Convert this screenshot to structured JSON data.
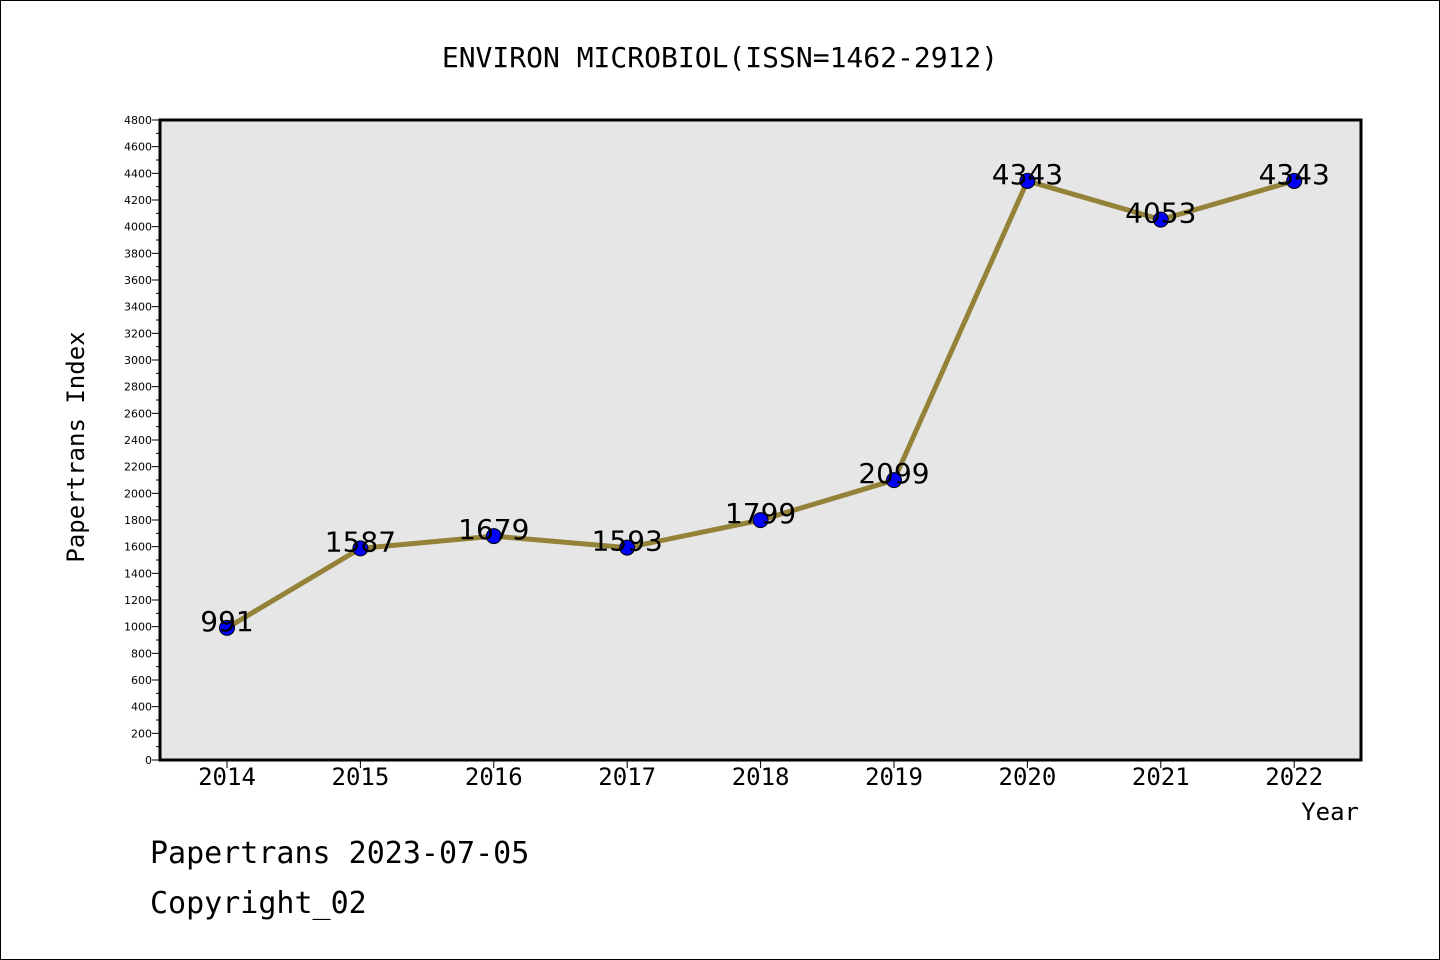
{
  "chart_data": {
    "type": "line",
    "title": "ENVIRON MICROBIOL(ISSN=1462-2912)",
    "xlabel": "Year",
    "ylabel": "Papertrans Index",
    "categories": [
      "2014",
      "2015",
      "2016",
      "2017",
      "2018",
      "2019",
      "2020",
      "2021",
      "2022"
    ],
    "series": [
      {
        "values": [
          991,
          1587,
          1679,
          1593,
          1799,
          2099,
          4343,
          4053,
          4343
        ]
      }
    ],
    "data_labels": [
      "991",
      "1587",
      "1679",
      "1593",
      "1799",
      "2099",
      "4343",
      "4053",
      "4343"
    ],
    "ylim": [
      0,
      4800
    ],
    "yticks": [
      "0",
      "200",
      "400",
      "600",
      "800",
      "1000",
      "1200",
      "1400",
      "1600",
      "1800",
      "2000",
      "2200",
      "2400",
      "2600",
      "2800",
      "3000",
      "3200",
      "3400",
      "3600",
      "3800",
      "4000",
      "4200",
      "4400",
      "4600",
      "4800"
    ],
    "grid": false,
    "legend": "none",
    "colors": {
      "line": "#948238",
      "marker": "#0000ff",
      "plot_bg": "#e6e6e6"
    }
  },
  "footer": {
    "date_text": "Papertrans 2023-07-05",
    "copyright_text": "Copyright_02"
  }
}
